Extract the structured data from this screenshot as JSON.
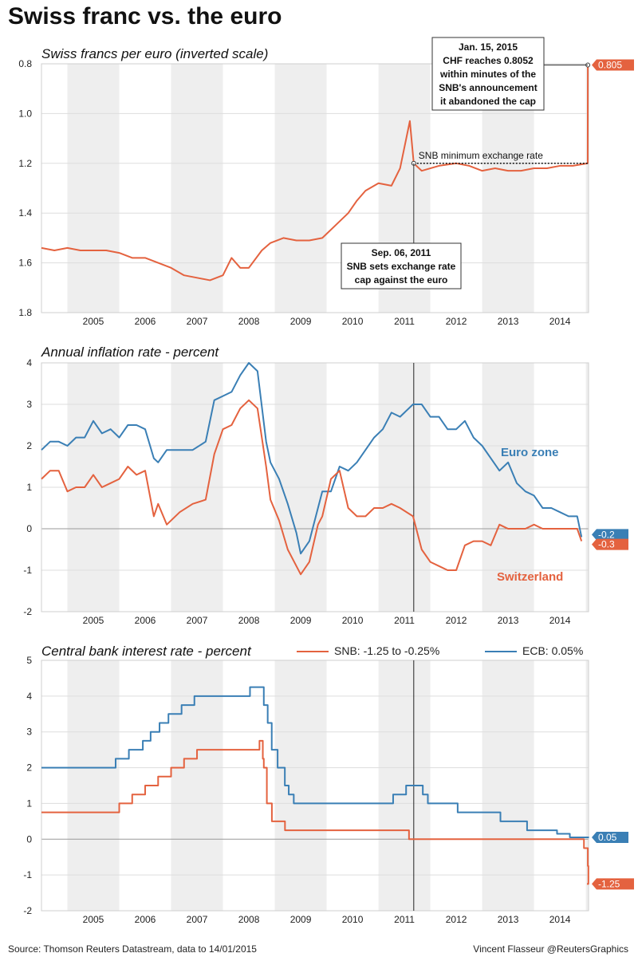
{
  "title": "Swiss franc vs. the euro",
  "source": "Source: Thomson Reuters Datastream, data to 14/01/2015",
  "credit": "Vincent Flasseur @ReutersGraphics",
  "colors": {
    "swiss": "#e4623f",
    "euro": "#3a7fb5",
    "shade": "#eeeeee",
    "grid": "#dddddd"
  },
  "chart_data": [
    {
      "id": "fx",
      "type": "line",
      "title": "Swiss francs per euro (inverted scale)",
      "x_ticks": [
        "2005",
        "2006",
        "2007",
        "2008",
        "2009",
        "2010",
        "2011",
        "2012",
        "2013",
        "2014"
      ],
      "xlim": [
        "2004-07-01",
        "2015-01-20"
      ],
      "ylim": [
        0.8,
        1.8
      ],
      "y_inverted": true,
      "y_ticks": [
        "0.8",
        "1.0",
        "1.2",
        "1.4",
        "1.6",
        "1.8"
      ],
      "series": [
        {
          "color": "swiss",
          "x": [
            "2004-07",
            "2004-10",
            "2005-01",
            "2005-04",
            "2005-07",
            "2005-10",
            "2006-01",
            "2006-04",
            "2006-07",
            "2006-10",
            "2007-01",
            "2007-04",
            "2007-07",
            "2007-10",
            "2008-01",
            "2008-03",
            "2008-05",
            "2008-07",
            "2008-10",
            "2008-12",
            "2009-03",
            "2009-06",
            "2009-09",
            "2009-12",
            "2010-03",
            "2010-06",
            "2010-08",
            "2010-10",
            "2011-01",
            "2011-04",
            "2011-06",
            "2011-08-09",
            "2011-09-06",
            "2011-11",
            "2012-03",
            "2012-07",
            "2012-10",
            "2013-01",
            "2013-04",
            "2013-07",
            "2013-10",
            "2014-01",
            "2014-04",
            "2014-07",
            "2014-10",
            "2015-01-14",
            "2015-01-15"
          ],
          "y": [
            1.54,
            1.55,
            1.54,
            1.55,
            1.55,
            1.55,
            1.56,
            1.58,
            1.58,
            1.6,
            1.62,
            1.65,
            1.66,
            1.67,
            1.65,
            1.58,
            1.62,
            1.62,
            1.55,
            1.52,
            1.5,
            1.51,
            1.51,
            1.5,
            1.45,
            1.4,
            1.35,
            1.31,
            1.28,
            1.29,
            1.22,
            1.03,
            1.2,
            1.23,
            1.21,
            1.2,
            1.21,
            1.23,
            1.22,
            1.23,
            1.23,
            1.22,
            1.22,
            1.21,
            1.21,
            1.2,
            0.805
          ]
        }
      ],
      "reference_line": {
        "label": "SNB minimum exchange rate",
        "y": 1.2,
        "x_start": "2011-09-06",
        "x_end": "2015-01-14"
      },
      "annotations": [
        {
          "x": "2015-01-15",
          "y": 0.805,
          "lines": [
            "Jan. 15, 2015",
            "CHF reaches 0.8052",
            "within minutes of the",
            "SNB's announcement",
            "it abandoned the cap"
          ]
        },
        {
          "x": "2011-09-06",
          "y": 1.2,
          "lines": [
            "Sep. 06, 2011",
            "SNB sets exchange rate",
            "cap against the euro"
          ]
        }
      ],
      "end_label": {
        "text": "0.805",
        "color": "swiss",
        "y": 0.805
      }
    },
    {
      "id": "infl",
      "type": "line",
      "title": "Annual inflation rate - percent",
      "x_ticks": [
        "2005",
        "2006",
        "2007",
        "2008",
        "2009",
        "2010",
        "2011",
        "2012",
        "2013",
        "2014"
      ],
      "xlim": [
        "2004-07-01",
        "2015-01-20"
      ],
      "ylim": [
        -2,
        4
      ],
      "y_ticks": [
        "4",
        "3",
        "2",
        "1",
        "0",
        "-1",
        "-2"
      ],
      "vline": "2011-09-06",
      "series": [
        {
          "name": "Euro zone",
          "color": "euro",
          "x": [
            "2004-07",
            "2004-09",
            "2004-11",
            "2005-01",
            "2005-03",
            "2005-05",
            "2005-07",
            "2005-09",
            "2005-11",
            "2006-01",
            "2006-03",
            "2006-05",
            "2006-07",
            "2006-09",
            "2006-10",
            "2006-12",
            "2007-03",
            "2007-06",
            "2007-09",
            "2007-11",
            "2008-01",
            "2008-03",
            "2008-05",
            "2008-07",
            "2008-09",
            "2008-11",
            "2008-12",
            "2009-02",
            "2009-04",
            "2009-06",
            "2009-07",
            "2009-09",
            "2009-11",
            "2009-12",
            "2010-02",
            "2010-04",
            "2010-06",
            "2010-08",
            "2010-10",
            "2010-12",
            "2011-02",
            "2011-04",
            "2011-06",
            "2011-09",
            "2011-11",
            "2012-01",
            "2012-03",
            "2012-05",
            "2012-07",
            "2012-09",
            "2012-11",
            "2013-01",
            "2013-03",
            "2013-05",
            "2013-07",
            "2013-09",
            "2013-11",
            "2014-01",
            "2014-03",
            "2014-05",
            "2014-07",
            "2014-09",
            "2014-11",
            "2014-12"
          ],
          "y": [
            1.9,
            2.1,
            2.1,
            2.0,
            2.2,
            2.2,
            2.6,
            2.3,
            2.4,
            2.2,
            2.5,
            2.5,
            2.4,
            1.7,
            1.6,
            1.9,
            1.9,
            1.9,
            2.1,
            3.1,
            3.2,
            3.3,
            3.7,
            4.0,
            3.8,
            2.1,
            1.6,
            1.2,
            0.6,
            -0.1,
            -0.6,
            -0.3,
            0.5,
            0.9,
            0.9,
            1.5,
            1.4,
            1.6,
            1.9,
            2.2,
            2.4,
            2.8,
            2.7,
            3.0,
            3.0,
            2.7,
            2.7,
            2.4,
            2.4,
            2.6,
            2.2,
            2.0,
            1.7,
            1.4,
            1.6,
            1.1,
            0.9,
            0.8,
            0.5,
            0.5,
            0.4,
            0.3,
            0.3,
            -0.2
          ]
        },
        {
          "name": "Switzerland",
          "color": "swiss",
          "x": [
            "2004-07",
            "2004-09",
            "2004-11",
            "2005-01",
            "2005-03",
            "2005-05",
            "2005-07",
            "2005-09",
            "2005-11",
            "2006-01",
            "2006-03",
            "2006-05",
            "2006-07",
            "2006-09",
            "2006-10",
            "2006-12",
            "2007-03",
            "2007-06",
            "2007-09",
            "2007-11",
            "2008-01",
            "2008-03",
            "2008-05",
            "2008-07",
            "2008-09",
            "2008-11",
            "2008-12",
            "2009-02",
            "2009-04",
            "2009-06",
            "2009-07",
            "2009-09",
            "2009-11",
            "2009-12",
            "2010-02",
            "2010-04",
            "2010-06",
            "2010-08",
            "2010-10",
            "2010-12",
            "2011-02",
            "2011-04",
            "2011-06",
            "2011-09",
            "2011-11",
            "2012-01",
            "2012-03",
            "2012-05",
            "2012-07",
            "2012-09",
            "2012-11",
            "2013-01",
            "2013-03",
            "2013-05",
            "2013-07",
            "2013-09",
            "2013-11",
            "2014-01",
            "2014-03",
            "2014-05",
            "2014-07",
            "2014-09",
            "2014-11",
            "2014-12"
          ],
          "y": [
            1.2,
            1.4,
            1.4,
            0.9,
            1.0,
            1.0,
            1.3,
            1.0,
            1.1,
            1.2,
            1.5,
            1.3,
            1.4,
            0.3,
            0.6,
            0.1,
            0.4,
            0.6,
            0.7,
            1.8,
            2.4,
            2.5,
            2.9,
            3.1,
            2.9,
            1.5,
            0.7,
            0.2,
            -0.5,
            -0.9,
            -1.1,
            -0.8,
            0.1,
            0.3,
            1.2,
            1.4,
            0.5,
            0.3,
            0.3,
            0.5,
            0.5,
            0.6,
            0.5,
            0.3,
            -0.5,
            -0.8,
            -0.9,
            -1.0,
            -1.0,
            -0.4,
            -0.3,
            -0.3,
            -0.4,
            0.1,
            0.0,
            0.0,
            0.0,
            0.1,
            0.0,
            0.0,
            0.0,
            0.0,
            0.0,
            -0.3
          ]
        }
      ],
      "end_labels": [
        {
          "text": "-0.2",
          "color": "euro",
          "y": -0.2
        },
        {
          "text": "-0.3",
          "color": "swiss",
          "y": -0.3
        }
      ]
    },
    {
      "id": "rates",
      "type": "line",
      "title": "Central bank interest rate - percent",
      "x_ticks": [
        "2005",
        "2006",
        "2007",
        "2008",
        "2009",
        "2010",
        "2011",
        "2012",
        "2013",
        "2014"
      ],
      "xlim": [
        "2004-07-01",
        "2015-01-20"
      ],
      "ylim": [
        -2,
        5
      ],
      "y_ticks": [
        "5",
        "4",
        "3",
        "2",
        "1",
        "0",
        "-1",
        "-2"
      ],
      "vline": "2011-09-06",
      "legend": "top",
      "series": [
        {
          "name": "SNB: -1.25 to -0.25%",
          "color": "swiss",
          "step": true,
          "x": [
            "2004-07-01",
            "2005-07-01",
            "2006-01-01",
            "2006-04-01",
            "2006-07-01",
            "2006-10-01",
            "2007-01-01",
            "2007-04-01",
            "2007-07-01",
            "2008-09-15",
            "2008-10-08",
            "2008-10-15",
            "2008-11-06",
            "2008-12-11",
            "2009-03-12",
            "2011-08-03",
            "2011-08-20",
            "2014-12-18",
            "2015-01-15",
            "2015-01-19"
          ],
          "y": [
            0.75,
            0.75,
            1.0,
            1.25,
            1.5,
            1.75,
            2.0,
            2.25,
            2.5,
            2.75,
            2.25,
            2.0,
            1.0,
            0.5,
            0.25,
            0.0,
            0.0,
            -0.25,
            -0.75,
            -1.25
          ]
        },
        {
          "name": "ECB: 0.05%",
          "color": "euro",
          "step": true,
          "x": [
            "2004-07-01",
            "2005-12-06",
            "2006-03-08",
            "2006-06-15",
            "2006-08-09",
            "2006-10-11",
            "2006-12-13",
            "2007-03-14",
            "2007-06-13",
            "2008-07-09",
            "2008-10-15",
            "2008-11-12",
            "2008-12-10",
            "2009-01-21",
            "2009-03-11",
            "2009-04-08",
            "2009-05-13",
            "2011-04-13",
            "2011-07-13",
            "2011-11-09",
            "2011-12-14",
            "2012-07-11",
            "2013-05-08",
            "2013-11-13",
            "2014-06-11",
            "2014-09-10",
            "2015-01-19"
          ],
          "y": [
            2.0,
            2.25,
            2.5,
            2.75,
            3.0,
            3.25,
            3.5,
            3.75,
            4.0,
            4.25,
            3.75,
            3.25,
            2.5,
            2.0,
            1.5,
            1.25,
            1.0,
            1.25,
            1.5,
            1.25,
            1.0,
            0.75,
            0.5,
            0.25,
            0.15,
            0.05,
            0.05
          ]
        }
      ],
      "end_labels": [
        {
          "text": "0.05",
          "color": "euro",
          "y": 0.05
        },
        {
          "text": "-1.25",
          "color": "swiss",
          "y": -1.25
        }
      ]
    }
  ]
}
